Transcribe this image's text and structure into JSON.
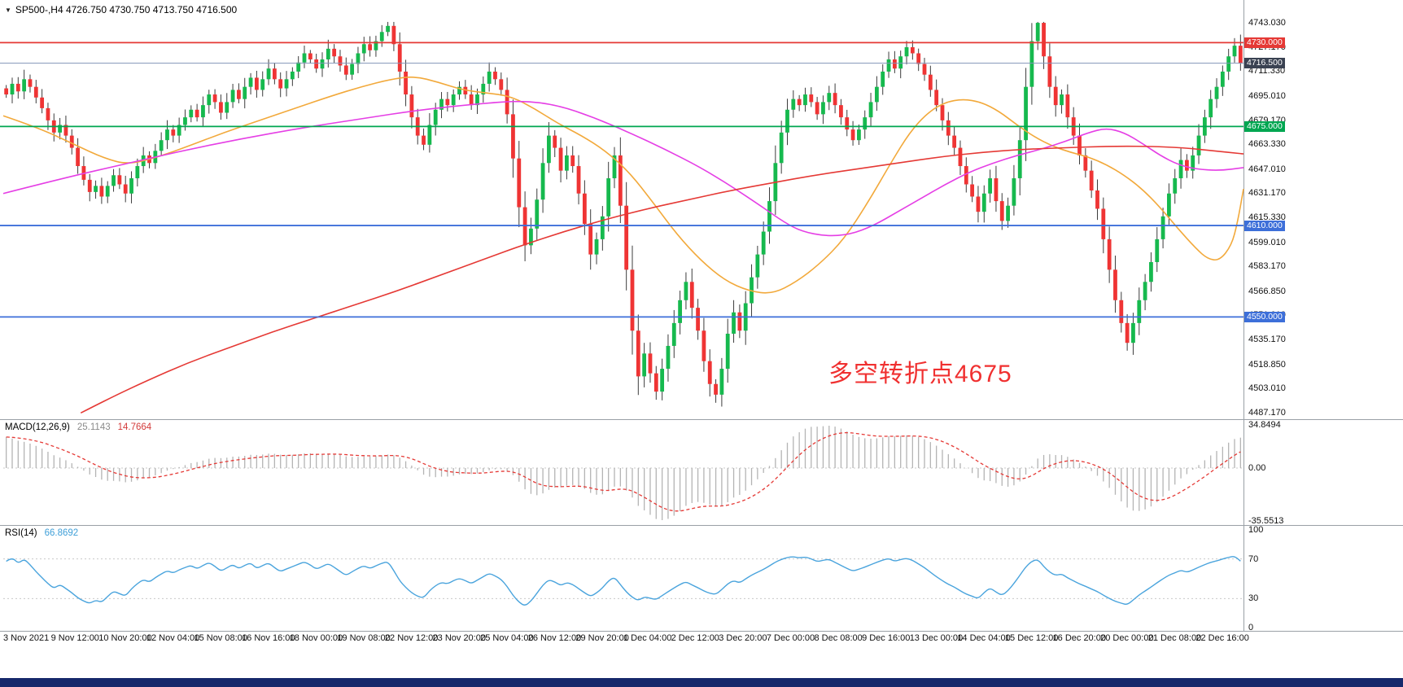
{
  "header": {
    "symbol_title": "SP500-,H4 4726.750 4730.750 4713.750 4716.500",
    "dropdown_icon": "▼"
  },
  "main_chart": {
    "annotation": {
      "text": "多空转折点4675",
      "color": "#f03030"
    },
    "hlines": [
      {
        "label": "4730.000",
        "price": 4730.0,
        "color": "#e53935"
      },
      {
        "label": "4675.000",
        "price": 4675.0,
        "color": "#00a651"
      },
      {
        "label": "4610.000",
        "price": 4610.0,
        "color": "#3d6fd9"
      },
      {
        "label": "4550.000",
        "price": 4550.0,
        "color": "#3d6fd9"
      }
    ],
    "current_price": {
      "label": "4716.500",
      "price": 4716.5,
      "tag_color": "#3a4252",
      "line_color": "#8294b8"
    },
    "price_ticks": [
      {
        "label": "4743.030",
        "price": 4743.03
      },
      {
        "label": "4727.170",
        "price": 4727.17
      },
      {
        "label": "4711.330",
        "price": 4711.33
      },
      {
        "label": "4695.010",
        "price": 4695.01
      },
      {
        "label": "4679.170",
        "price": 4679.17
      },
      {
        "label": "4663.330",
        "price": 4663.33
      },
      {
        "label": "4647.010",
        "price": 4647.01
      },
      {
        "label": "4631.170",
        "price": 4631.17
      },
      {
        "label": "4615.330",
        "price": 4615.33
      },
      {
        "label": "4599.010",
        "price": 4599.01
      },
      {
        "label": "4583.170",
        "price": 4583.17
      },
      {
        "label": "4566.850",
        "price": 4566.85
      },
      {
        "label": "4551.010",
        "price": 4551.01
      },
      {
        "label": "4535.170",
        "price": 4535.17
      },
      {
        "label": "4518.850",
        "price": 4518.85
      },
      {
        "label": "4503.010",
        "price": 4503.01
      },
      {
        "label": "4487.170",
        "price": 4487.17
      }
    ]
  },
  "chart_data": {
    "type": "candlestick",
    "symbol": "SP500-",
    "timeframe": "H4",
    "ohlc_current": {
      "open": 4726.75,
      "high": 4730.75,
      "low": 4713.75,
      "close": 4716.5
    },
    "y_range": [
      4487.17,
      4743.03
    ],
    "bars_per_label": 8,
    "closes": [
      4696,
      4703,
      4698,
      4706,
      4701,
      4694,
      4687,
      4679,
      4671,
      4676,
      4669,
      4661,
      4649,
      4640,
      4632,
      4636,
      4629,
      4636,
      4643,
      4637,
      4631,
      4641,
      4649,
      4656,
      4651,
      4659,
      4666,
      4673,
      4669,
      4676,
      4681,
      4686,
      4681,
      4689,
      4696,
      4691,
      4684,
      4691,
      4699,
      4693,
      4701,
      4707,
      4699,
      4706,
      4713,
      4706,
      4700,
      4706,
      4711,
      4717,
      4723,
      4719,
      4713,
      4719,
      4726,
      4721,
      4715,
      4709,
      4716,
      4723,
      4729,
      4725,
      4731,
      4737,
      4741,
      4729,
      4711,
      4696,
      4681,
      4669,
      4663,
      4676,
      4686,
      4693,
      4689,
      4696,
      4701,
      4696,
      4689,
      4696,
      4703,
      4711,
      4706,
      4699,
      4683,
      4654,
      4622,
      4597,
      4608,
      4627,
      4651,
      4669,
      4661,
      4646,
      4656,
      4649,
      4631,
      4611,
      4591,
      4601,
      4616,
      4641,
      4656,
      4623,
      4581,
      4541,
      4511,
      4526,
      4513,
      4501,
      4516,
      4531,
      4546,
      4561,
      4573,
      4556,
      4541,
      4521,
      4506,
      4499,
      4516,
      4539,
      4553,
      4541,
      4559,
      4576,
      4591,
      4606,
      4626,
      4651,
      4671,
      4686,
      4693,
      4689,
      4696,
      4691,
      4683,
      4691,
      4697,
      4689,
      4681,
      4673,
      4666,
      4673,
      4681,
      4691,
      4701,
      4711,
      4719,
      4713,
      4721,
      4727,
      4723,
      4716,
      4709,
      4699,
      4689,
      4679,
      4669,
      4661,
      4649,
      4637,
      4629,
      4619,
      4631,
      4641,
      4626,
      4613,
      4623,
      4641,
      4666,
      4701,
      4731,
      4743,
      4721,
      4701,
      4689,
      4696,
      4681,
      4669,
      4656,
      4646,
      4633,
      4621,
      4601,
      4581,
      4561,
      4546,
      4533,
      4546,
      4561,
      4573,
      4586,
      4601,
      4616,
      4631,
      4641,
      4653,
      4646,
      4656,
      4669,
      4681,
      4693,
      4701,
      4711,
      4721,
      4728,
      4716.5
    ],
    "x_labels": [
      "3 Nov 2021",
      "9 Nov 12:00",
      "10 Nov 20:00",
      "12 Nov 04:00",
      "15 Nov 08:00",
      "16 Nov 16:00",
      "18 Nov 00:00",
      "19 Nov 08:00",
      "22 Nov 12:00",
      "23 Nov 20:00",
      "25 Nov 04:00",
      "26 Nov 12:00",
      "29 Nov 20:00",
      "1 Dec 04:00",
      "2 Dec 12:00",
      "3 Dec 20:00",
      "7 Dec 00:00",
      "8 Dec 08:00",
      "9 Dec 16:00",
      "13 Dec 00:00",
      "14 Dec 04:00",
      "15 Dec 12:00",
      "16 Dec 20:00",
      "20 Dec 00:00",
      "21 Dec 08:00",
      "22 Dec 16:00"
    ],
    "candle_colors": {
      "up": "#16b94e",
      "down": "#ef3434",
      "wick": "#3c3c3c"
    },
    "moving_averages": [
      {
        "name": "fast-orange",
        "color": "#f2a93b",
        "points": [
          [
            0,
            4682
          ],
          [
            6,
            4674
          ],
          [
            12,
            4663
          ],
          [
            17,
            4654
          ],
          [
            21,
            4650
          ],
          [
            26,
            4655
          ],
          [
            31,
            4662
          ],
          [
            37,
            4671
          ],
          [
            43,
            4679
          ],
          [
            49,
            4687
          ],
          [
            55,
            4695
          ],
          [
            60,
            4701
          ],
          [
            65,
            4706
          ],
          [
            69,
            4708
          ],
          [
            73,
            4704
          ],
          [
            77,
            4699
          ],
          [
            81,
            4697
          ],
          [
            85,
            4695
          ],
          [
            89,
            4687
          ],
          [
            93,
            4677
          ],
          [
            97,
            4669
          ],
          [
            101,
            4659
          ],
          [
            105,
            4645
          ],
          [
            109,
            4625
          ],
          [
            113,
            4604
          ],
          [
            117,
            4587
          ],
          [
            121,
            4574
          ],
          [
            125,
            4567
          ],
          [
            129,
            4565
          ],
          [
            133,
            4573
          ],
          [
            137,
            4585
          ],
          [
            141,
            4601
          ],
          [
            145,
            4625
          ],
          [
            149,
            4652
          ],
          [
            152,
            4671
          ],
          [
            155,
            4684
          ],
          [
            158,
            4691
          ],
          [
            161,
            4693
          ],
          [
            164,
            4691
          ],
          [
            167,
            4685
          ],
          [
            170,
            4676
          ],
          [
            173,
            4668
          ],
          [
            176,
            4662
          ],
          [
            179,
            4658
          ],
          [
            182,
            4655
          ],
          [
            185,
            4650
          ],
          [
            188,
            4643
          ],
          [
            191,
            4634
          ],
          [
            194,
            4622
          ],
          [
            197,
            4608
          ],
          [
            200,
            4595
          ],
          [
            202,
            4588
          ],
          [
            204,
            4587
          ],
          [
            206,
            4597
          ],
          [
            207,
            4612
          ],
          [
            208,
            4634
          ]
        ]
      },
      {
        "name": "medium-magenta",
        "color": "#e53fe5",
        "points": [
          [
            0,
            4631
          ],
          [
            10,
            4641
          ],
          [
            20,
            4650
          ],
          [
            30,
            4659
          ],
          [
            40,
            4667
          ],
          [
            50,
            4674
          ],
          [
            60,
            4680
          ],
          [
            70,
            4686
          ],
          [
            80,
            4690
          ],
          [
            87,
            4692
          ],
          [
            93,
            4689
          ],
          [
            99,
            4681
          ],
          [
            105,
            4671
          ],
          [
            111,
            4660
          ],
          [
            117,
            4648
          ],
          [
            122,
            4636
          ],
          [
            127,
            4623
          ],
          [
            131,
            4612
          ],
          [
            134,
            4606
          ],
          [
            138,
            4603
          ],
          [
            142,
            4604
          ],
          [
            146,
            4610
          ],
          [
            150,
            4619
          ],
          [
            154,
            4628
          ],
          [
            158,
            4637
          ],
          [
            162,
            4645
          ],
          [
            166,
            4651
          ],
          [
            170,
            4656
          ],
          [
            174,
            4660
          ],
          [
            178,
            4665
          ],
          [
            182,
            4671
          ],
          [
            185,
            4674
          ],
          [
            188,
            4671
          ],
          [
            191,
            4664
          ],
          [
            194,
            4656
          ],
          [
            197,
            4650
          ],
          [
            200,
            4647
          ],
          [
            204,
            4646
          ],
          [
            208,
            4648
          ]
        ]
      },
      {
        "name": "slow-red",
        "color": "#e53935",
        "points": [
          [
            13,
            4487
          ],
          [
            18,
            4497
          ],
          [
            24,
            4508
          ],
          [
            31,
            4520
          ],
          [
            38,
            4530
          ],
          [
            45,
            4540
          ],
          [
            52,
            4549
          ],
          [
            59,
            4558
          ],
          [
            66,
            4567
          ],
          [
            73,
            4577
          ],
          [
            80,
            4587
          ],
          [
            87,
            4597
          ],
          [
            94,
            4606
          ],
          [
            101,
            4614
          ],
          [
            108,
            4621
          ],
          [
            115,
            4627
          ],
          [
            122,
            4633
          ],
          [
            129,
            4638
          ],
          [
            136,
            4643
          ],
          [
            143,
            4647
          ],
          [
            150,
            4651
          ],
          [
            157,
            4655
          ],
          [
            164,
            4658
          ],
          [
            171,
            4660
          ],
          [
            178,
            4661
          ],
          [
            185,
            4662
          ],
          [
            192,
            4662
          ],
          [
            198,
            4661
          ],
          [
            203,
            4659
          ],
          [
            208,
            4657
          ]
        ]
      }
    ],
    "indicators": {
      "macd": {
        "name": "MACD(12,26,9)",
        "value_main": "25.1143",
        "value_signal": "14.7664",
        "fast": 12,
        "slow": 26,
        "signal": 9,
        "axis_ticks": [
          "34.8494",
          "0.00",
          "-35.5513"
        ],
        "histogram_color": "#b4b4b4",
        "signal_color": "#e53935"
      },
      "rsi": {
        "name": "RSI(14)",
        "value": "66.8692",
        "period": 14,
        "axis_ticks": [
          "100",
          "70",
          "30",
          "0"
        ],
        "levels": [
          70,
          30
        ],
        "line_color": "#4aa4dd"
      }
    }
  },
  "taskbar": {
    "color": "#16286b"
  }
}
